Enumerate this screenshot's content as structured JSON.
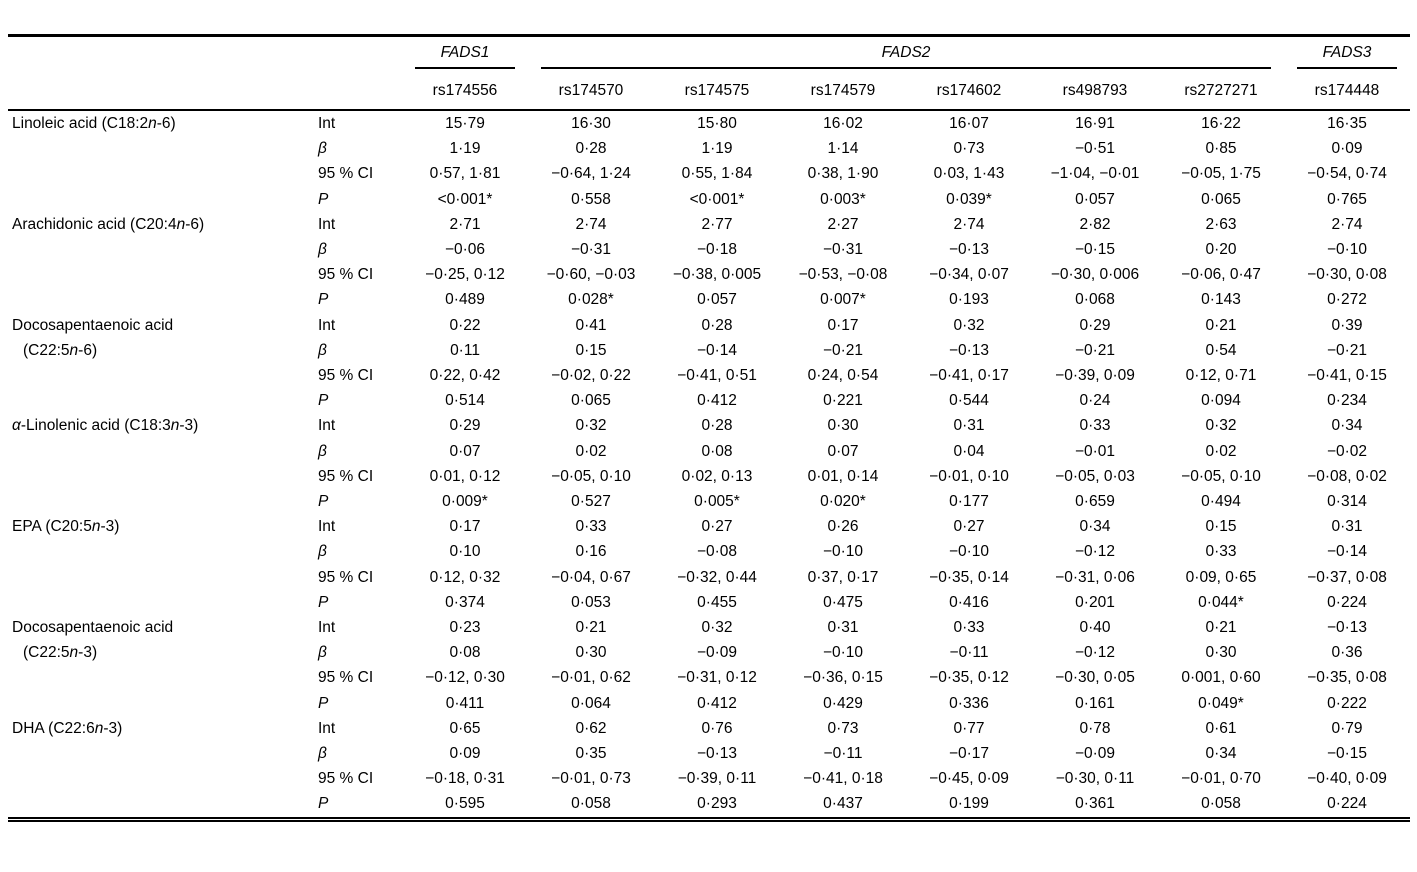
{
  "table": {
    "gene_groups": [
      {
        "label": "FADS1",
        "span": 1
      },
      {
        "label": "FADS2",
        "span": 6
      },
      {
        "label": "FADS3",
        "span": 1
      }
    ],
    "snp_headers": [
      "rs174556",
      "rs174570",
      "rs174575",
      "rs174579",
      "rs174602",
      "rs498793",
      "rs2727271",
      "rs174448"
    ],
    "stats": [
      {
        "key": "int",
        "label": "Int",
        "italic": false
      },
      {
        "key": "beta",
        "label": "β",
        "italic": true
      },
      {
        "key": "ci",
        "label": "95 % CI",
        "italic": false
      },
      {
        "key": "p",
        "label": "P",
        "italic": true
      }
    ],
    "rows": [
      {
        "label_lines": [
          [
            {
              "t": "Linoleic acid (C18:2"
            },
            {
              "t": "n",
              "i": true
            },
            {
              "t": "-6)"
            }
          ]
        ],
        "int": [
          "15·79",
          "16·30",
          "15·80",
          "16·02",
          "16·07",
          "16·91",
          "16·22",
          "16·35"
        ],
        "beta": [
          "1·19",
          "0·28",
          "1·19",
          "1·14",
          "0·73",
          "−0·51",
          "0·85",
          "0·09"
        ],
        "ci": [
          "0·57, 1·81",
          "−0·64, 1·24",
          "0·55, 1·84",
          "0·38, 1·90",
          "0·03, 1·43",
          "−1·04, −0·01",
          "−0·05, 1·75",
          "−0·54, 0·74"
        ],
        "p": [
          "<0·001*",
          "0·558",
          "<0·001*",
          "0·003*",
          "0·039*",
          "0·057",
          "0·065",
          "0·765"
        ]
      },
      {
        "label_lines": [
          [
            {
              "t": "Arachidonic acid (C20:4"
            },
            {
              "t": "n",
              "i": true
            },
            {
              "t": "-6)"
            }
          ]
        ],
        "int": [
          "2·71",
          "2·74",
          "2·77",
          "2·27",
          "2·74",
          "2·82",
          "2·63",
          "2·74"
        ],
        "beta": [
          "−0·06",
          "−0·31",
          "−0·18",
          "−0·31",
          "−0·13",
          "−0·15",
          "0·20",
          "−0·10"
        ],
        "ci": [
          "−0·25, 0·12",
          "−0·60, −0·03",
          "−0·38, 0·005",
          "−0·53, −0·08",
          "−0·34, 0·07",
          "−0·30, 0·006",
          "−0·06, 0·47",
          "−0·30, 0·08"
        ],
        "p": [
          "0·489",
          "0·028*",
          "0·057",
          "0·007*",
          "0·193",
          "0·068",
          "0·143",
          "0·272"
        ]
      },
      {
        "label_lines": [
          [
            {
              "t": "Docosapentaenoic acid"
            }
          ],
          [
            {
              "t": "(C22:5"
            },
            {
              "t": "n",
              "i": true
            },
            {
              "t": "-6)"
            }
          ]
        ],
        "int": [
          "0·22",
          "0·41",
          "0·28",
          "0·17",
          "0·32",
          "0·29",
          "0·21",
          "0·39"
        ],
        "beta": [
          "0·11",
          "0·15",
          "−0·14",
          "−0·21",
          "−0·13",
          "−0·21",
          "0·54",
          "−0·21"
        ],
        "ci": [
          "0·22, 0·42",
          "−0·02, 0·22",
          "−0·41, 0·51",
          "0·24, 0·54",
          "−0·41, 0·17",
          "−0·39, 0·09",
          "0·12, 0·71",
          "−0·41, 0·15"
        ],
        "p": [
          "0·514",
          "0·065",
          "0·412",
          "0·221",
          "0·544",
          "0·24",
          "0·094",
          "0·234"
        ]
      },
      {
        "label_lines": [
          [
            {
              "t": "α",
              "i": true
            },
            {
              "t": "-Linolenic acid (C18:3"
            },
            {
              "t": "n",
              "i": true
            },
            {
              "t": "-3)"
            }
          ]
        ],
        "int": [
          "0·29",
          "0·32",
          "0·28",
          "0·30",
          "0·31",
          "0·33",
          "0·32",
          "0·34"
        ],
        "beta": [
          "0·07",
          "0·02",
          "0·08",
          "0·07",
          "0·04",
          "−0·01",
          "0·02",
          "−0·02"
        ],
        "ci": [
          "0·01, 0·12",
          "−0·05, 0·10",
          "0·02, 0·13",
          "0·01, 0·14",
          "−0·01, 0·10",
          "−0·05, 0·03",
          "−0·05, 0·10",
          "−0·08, 0·02"
        ],
        "p": [
          "0·009*",
          "0·527",
          "0·005*",
          "0·020*",
          "0·177",
          "0·659",
          "0·494",
          "0·314"
        ]
      },
      {
        "label_lines": [
          [
            {
              "t": "EPA (C20:5"
            },
            {
              "t": "n",
              "i": true
            },
            {
              "t": "-3)"
            }
          ]
        ],
        "int": [
          "0·17",
          "0·33",
          "0·27",
          "0·26",
          "0·27",
          "0·34",
          "0·15",
          "0·31"
        ],
        "beta": [
          "0·10",
          "0·16",
          "−0·08",
          "−0·10",
          "−0·10",
          "−0·12",
          "0·33",
          "−0·14"
        ],
        "ci": [
          "0·12, 0·32",
          "−0·04, 0·67",
          "−0·32, 0·44",
          "0·37, 0·17",
          "−0·35, 0·14",
          "−0·31, 0·06",
          "0·09, 0·65",
          "−0·37, 0·08"
        ],
        "p": [
          "0·374",
          "0·053",
          "0·455",
          "0·475",
          "0·416",
          "0·201",
          "0·044*",
          "0·224"
        ]
      },
      {
        "label_lines": [
          [
            {
              "t": "Docosapentaenoic acid"
            }
          ],
          [
            {
              "t": "(C22:5"
            },
            {
              "t": "n",
              "i": true
            },
            {
              "t": "-3)"
            }
          ]
        ],
        "int": [
          "0·23",
          "0·21",
          "0·32",
          "0·31",
          "0·33",
          "0·40",
          "0·21",
          "−0·13"
        ],
        "beta": [
          "0·08",
          "0·30",
          "−0·09",
          "−0·10",
          "−0·11",
          "−0·12",
          "0·30",
          "0·36"
        ],
        "ci": [
          "−0·12, 0·30",
          "−0·01, 0·62",
          "−0·31, 0·12",
          "−0·36, 0·15",
          "−0·35, 0·12",
          "−0·30, 0·05",
          "0·001, 0·60",
          "−0·35, 0·08"
        ],
        "p": [
          "0·411",
          "0·064",
          "0·412",
          "0·429",
          "0·336",
          "0·161",
          "0·049*",
          "0·222"
        ]
      },
      {
        "label_lines": [
          [
            {
              "t": "DHA (C22:6"
            },
            {
              "t": "n",
              "i": true
            },
            {
              "t": "-3)"
            }
          ]
        ],
        "int": [
          "0·65",
          "0·62",
          "0·76",
          "0·73",
          "0·77",
          "0·78",
          "0·61",
          "0·79"
        ],
        "beta": [
          "0·09",
          "0·35",
          "−0·13",
          "−0·11",
          "−0·17",
          "−0·09",
          "0·34",
          "−0·15"
        ],
        "ci": [
          "−0·18, 0·31",
          "−0·01, 0·73",
          "−0·39, 0·11",
          "−0·41, 0·18",
          "−0·45, 0·09",
          "−0·30, 0·11",
          "−0·01, 0·70",
          "−0·40, 0·09"
        ],
        "p": [
          "0·595",
          "0·058",
          "0·293",
          "0·437",
          "0·199",
          "0·361",
          "0·058",
          "0·224"
        ]
      }
    ]
  }
}
